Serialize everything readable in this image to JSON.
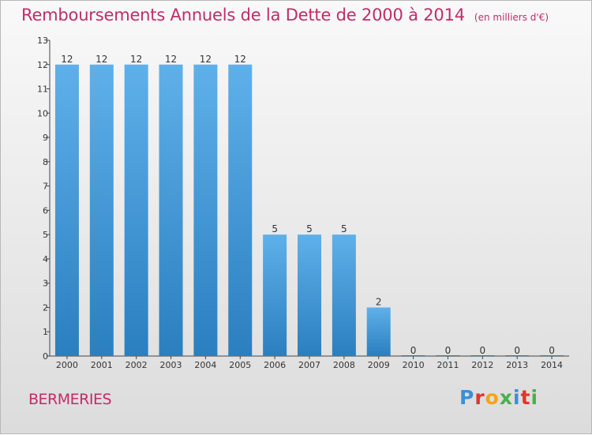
{
  "header": {
    "title": "Remboursements Annuels de la Dette de 2000 à 2014",
    "unit": "(en milliers d'€)"
  },
  "footer": {
    "commune": "BERMERIES",
    "logo": "Proxiti",
    "logo_colors": [
      "#3b8fd6",
      "#e0362c",
      "#f5a316",
      "#4bb04b",
      "#3b8fd6",
      "#e0362c",
      "#4bb04b"
    ]
  },
  "colors": {
    "accent": "#c12c6a",
    "bar_top": "#5fb0ea",
    "bar_bottom": "#2a7fbf"
  },
  "chart_data": {
    "type": "bar",
    "categories": [
      "2000",
      "2001",
      "2002",
      "2003",
      "2004",
      "2005",
      "2006",
      "2007",
      "2008",
      "2009",
      "2010",
      "2011",
      "2012",
      "2013",
      "2014"
    ],
    "values": [
      12,
      12,
      12,
      12,
      12,
      12,
      5,
      5,
      5,
      2,
      0,
      0,
      0,
      0,
      0
    ],
    "data_labels": [
      "12",
      "12",
      "12",
      "12",
      "12",
      "12",
      "5",
      "5",
      "5",
      "2",
      "0",
      "0",
      "0",
      "0",
      "0"
    ],
    "yticks": [
      0,
      1,
      2,
      3,
      4,
      5,
      6,
      7,
      8,
      9,
      10,
      11,
      12,
      13
    ],
    "ylim": [
      0,
      13
    ],
    "grid": false,
    "legend": "none"
  }
}
